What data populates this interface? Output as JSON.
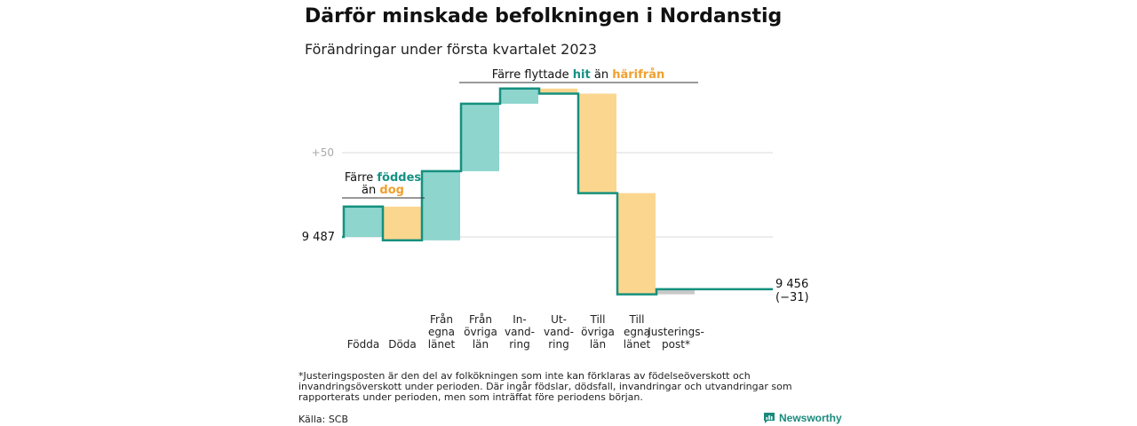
{
  "title": "Därför minskade befolkningen i Nordanstig",
  "subtitle": "Förändringar under första kvartalet 2023",
  "colors": {
    "increase": "#8dd5cd",
    "decrease": "#fbd68f",
    "adjustment": "#c9c9c9",
    "line": "#15907f",
    "teal_text": "#159283",
    "orange_text": "#f0a030"
  },
  "chart_data": {
    "type": "waterfall",
    "start": {
      "value": 9487,
      "label": "9 487"
    },
    "end": {
      "value": 9456,
      "label": "9 456",
      "change_label": "(−31)"
    },
    "gridline_label": "+50",
    "gridline_offset": 50,
    "steps": [
      {
        "label": "Födda",
        "delta": 18,
        "kind": "increase"
      },
      {
        "label": "Döda",
        "delta": -20,
        "kind": "decrease"
      },
      {
        "label": "Från egna länet",
        "lines": [
          "Från",
          "egna",
          "länet"
        ],
        "delta": 41,
        "kind": "increase"
      },
      {
        "label": "Från övriga län",
        "lines": [
          "Från",
          "övriga",
          "län"
        ],
        "delta": 40,
        "kind": "increase"
      },
      {
        "label": "Invandring",
        "lines": [
          "In-",
          "vand-",
          "ring"
        ],
        "delta": 9,
        "kind": "increase"
      },
      {
        "label": "Utvandring",
        "lines": [
          "Ut-",
          "vand-",
          "ring"
        ],
        "delta": -3,
        "kind": "decrease"
      },
      {
        "label": "Till övriga län",
        "lines": [
          "Till",
          "övriga",
          "län"
        ],
        "delta": -59,
        "kind": "decrease"
      },
      {
        "label": "Till egna länet",
        "lines": [
          "Till",
          "egna",
          "länet"
        ],
        "delta": -60,
        "kind": "decrease"
      },
      {
        "label": "Justeringspost*",
        "lines": [
          "Justerings-",
          "post*"
        ],
        "delta": 3,
        "kind": "adjustment"
      }
    ],
    "annotations": {
      "born": {
        "line1": "Färre",
        "hl1": "föddes",
        "line2": "än",
        "hl2": "dog"
      },
      "moved": {
        "text1": "Färre flyttade",
        "hl1": "hit",
        "text2": "än",
        "hl2": "härifrån"
      }
    }
  },
  "footnote": "*Justeringsposten är den del av folkökningen som inte kan förklaras av födelseöverskott och invandringsöverskott under perioden. Där ingår födslar, dödsfall, invandringar och utvandringar som rapporterats under perioden, men som inträffat före periodens början.",
  "source": "Källa: SCB",
  "brand": "Newsworthy"
}
